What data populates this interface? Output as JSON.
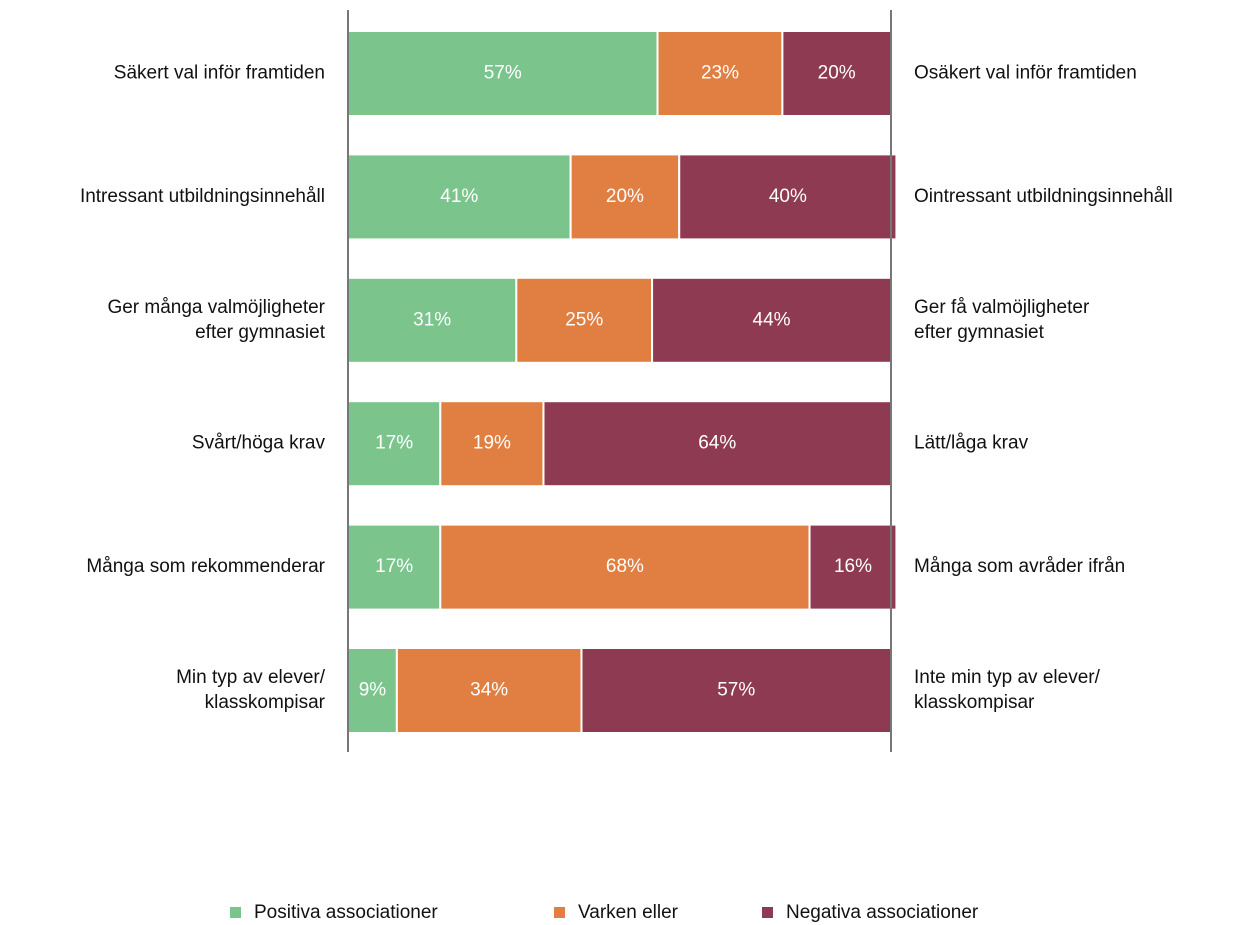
{
  "chart_data": {
    "type": "stacked_bar_horizontal",
    "categories": [
      [
        "Säkert val inför framtiden"
      ],
      [
        "Intressant utbildningsinnehåll"
      ],
      [
        "Ger många valmöjligheter",
        "efter gymnasiet"
      ],
      [
        "Svårt/höga krav"
      ],
      [
        "Många som rekommenderar"
      ],
      [
        "Min typ av elever/",
        "klasskompisar"
      ]
    ],
    "right_labels": [
      [
        "Osäkert val inför framtiden"
      ],
      [
        "Ointressant utbildningsinnehåll"
      ],
      [
        "Ger få valmöjligheter",
        "efter gymnasiet"
      ],
      [
        "Lätt/låga krav"
      ],
      [
        "Många som avråder ifrån"
      ],
      [
        "Inte min typ av elever/",
        "klasskompisar"
      ]
    ],
    "series": [
      {
        "name": "Positiva associationer",
        "color": "#7bc58d",
        "values": [
          57,
          41,
          31,
          17,
          17,
          9
        ],
        "value_labels": [
          "57%",
          "41%",
          "31%",
          "17%",
          "17%",
          "9%"
        ]
      },
      {
        "name": "Varken eller",
        "color": "#e07f41",
        "values": [
          23,
          20,
          25,
          19,
          68,
          34
        ],
        "value_labels": [
          "23%",
          "20%",
          "25%",
          "19%",
          "68%",
          "34%"
        ]
      },
      {
        "name": "Negativa associationer",
        "color": "#8e3a52",
        "values": [
          20,
          40,
          44,
          64,
          16,
          57
        ],
        "value_labels": [
          "20%",
          "40%",
          "44%",
          "64%",
          "16%",
          "57%"
        ]
      }
    ],
    "xlim": [
      0,
      100
    ],
    "legend": "bottom"
  }
}
